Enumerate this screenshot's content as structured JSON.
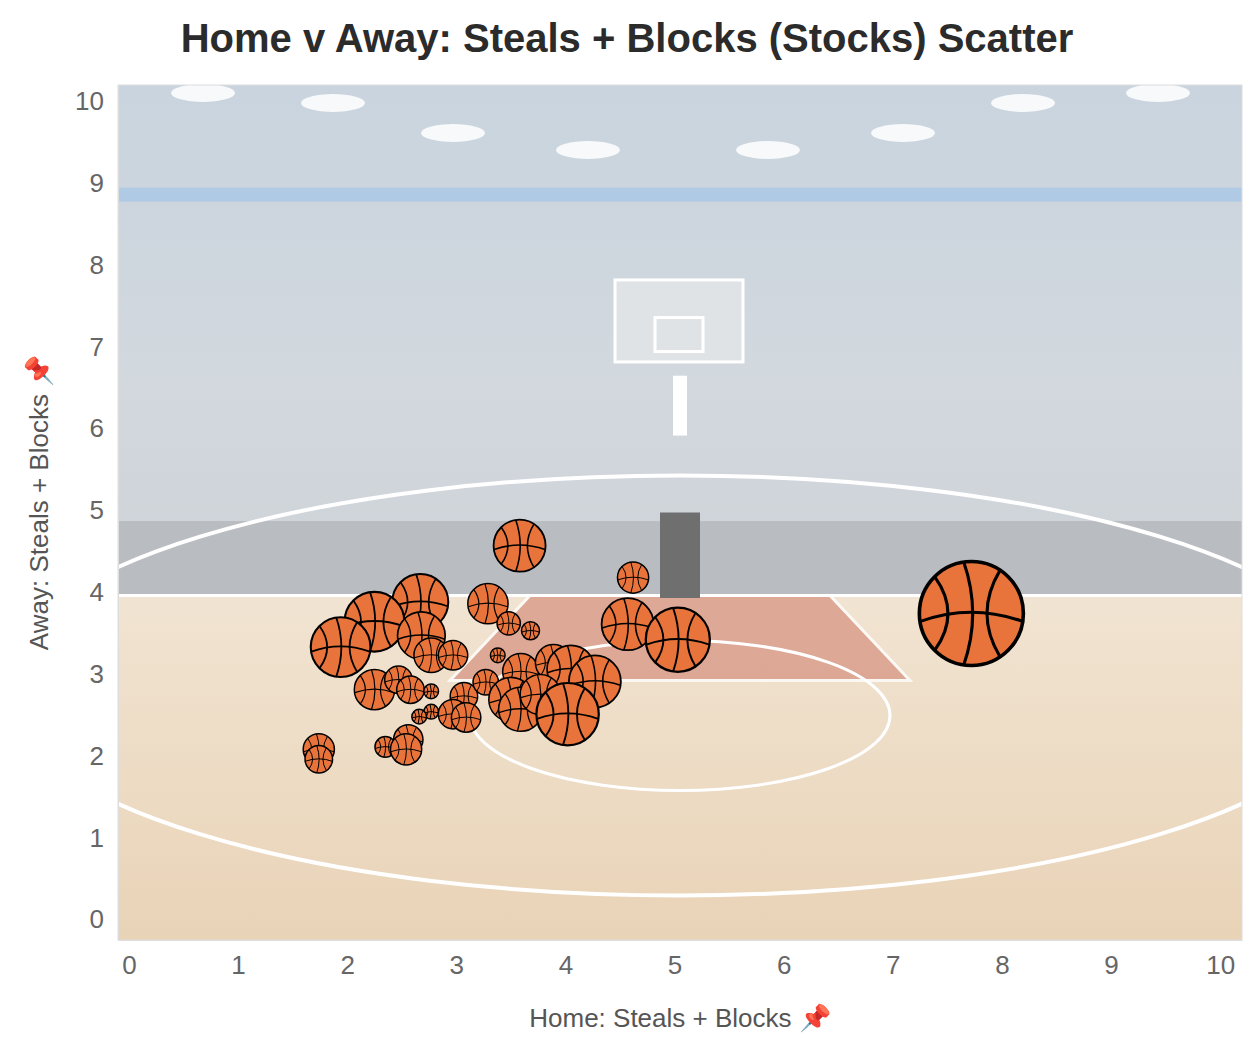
{
  "chart_data": {
    "type": "scatter",
    "title": "Home v Away: Steals + Blocks (Stocks) Scatter",
    "x_label": "Home: Steals + Blocks 📌",
    "y_label": "Away: Steals + Blocks 📌",
    "x": [
      3.58,
      4.62,
      7.72,
      2.67,
      2.25,
      1.94,
      3.29,
      3.48,
      3.68,
      4.57,
      5.03,
      2.68,
      2.77,
      2.97,
      3.38,
      3.59,
      3.89,
      4.05,
      4.27,
      2.25,
      2.47,
      2.58,
      2.77,
      3.07,
      3.27,
      3.5,
      3.59,
      3.77,
      4.02,
      2.77,
      2.66,
      2.97,
      3.09,
      1.74,
      1.74,
      2.35,
      2.56,
      2.54
    ],
    "values": [
      4.57,
      4.18,
      3.74,
      3.88,
      3.64,
      3.33,
      3.86,
      3.62,
      3.53,
      3.61,
      3.42,
      3.47,
      3.23,
      3.23,
      3.23,
      3.03,
      3.14,
      3.06,
      2.91,
      2.81,
      2.93,
      2.81,
      2.79,
      2.73,
      2.9,
      2.69,
      2.57,
      2.75,
      2.51,
      2.54,
      2.48,
      2.51,
      2.47,
      2.08,
      1.96,
      2.11,
      2.2,
      2.08
    ],
    "sizes": [
      25,
      9,
      100,
      29,
      33,
      33,
      15,
      5,
      3,
      25,
      38,
      21,
      11,
      8,
      2,
      12,
      12,
      21,
      25,
      15,
      7,
      7,
      2,
      7,
      6,
      18,
      18,
      15,
      36,
      2,
      2,
      8,
      8,
      9,
      7,
      4,
      8,
      9
    ],
    "color": "#e8743b",
    "marker": "basketball",
    "xlim": [
      -0.1,
      10.2
    ],
    "ylim": [
      -0.25,
      10.2
    ],
    "xticks": [
      0,
      1,
      2,
      3,
      4,
      5,
      6,
      7,
      8,
      9,
      10
    ],
    "yticks": [
      0,
      1,
      2,
      3,
      4,
      5,
      6,
      7,
      8,
      9,
      10
    ],
    "grid": false
  }
}
